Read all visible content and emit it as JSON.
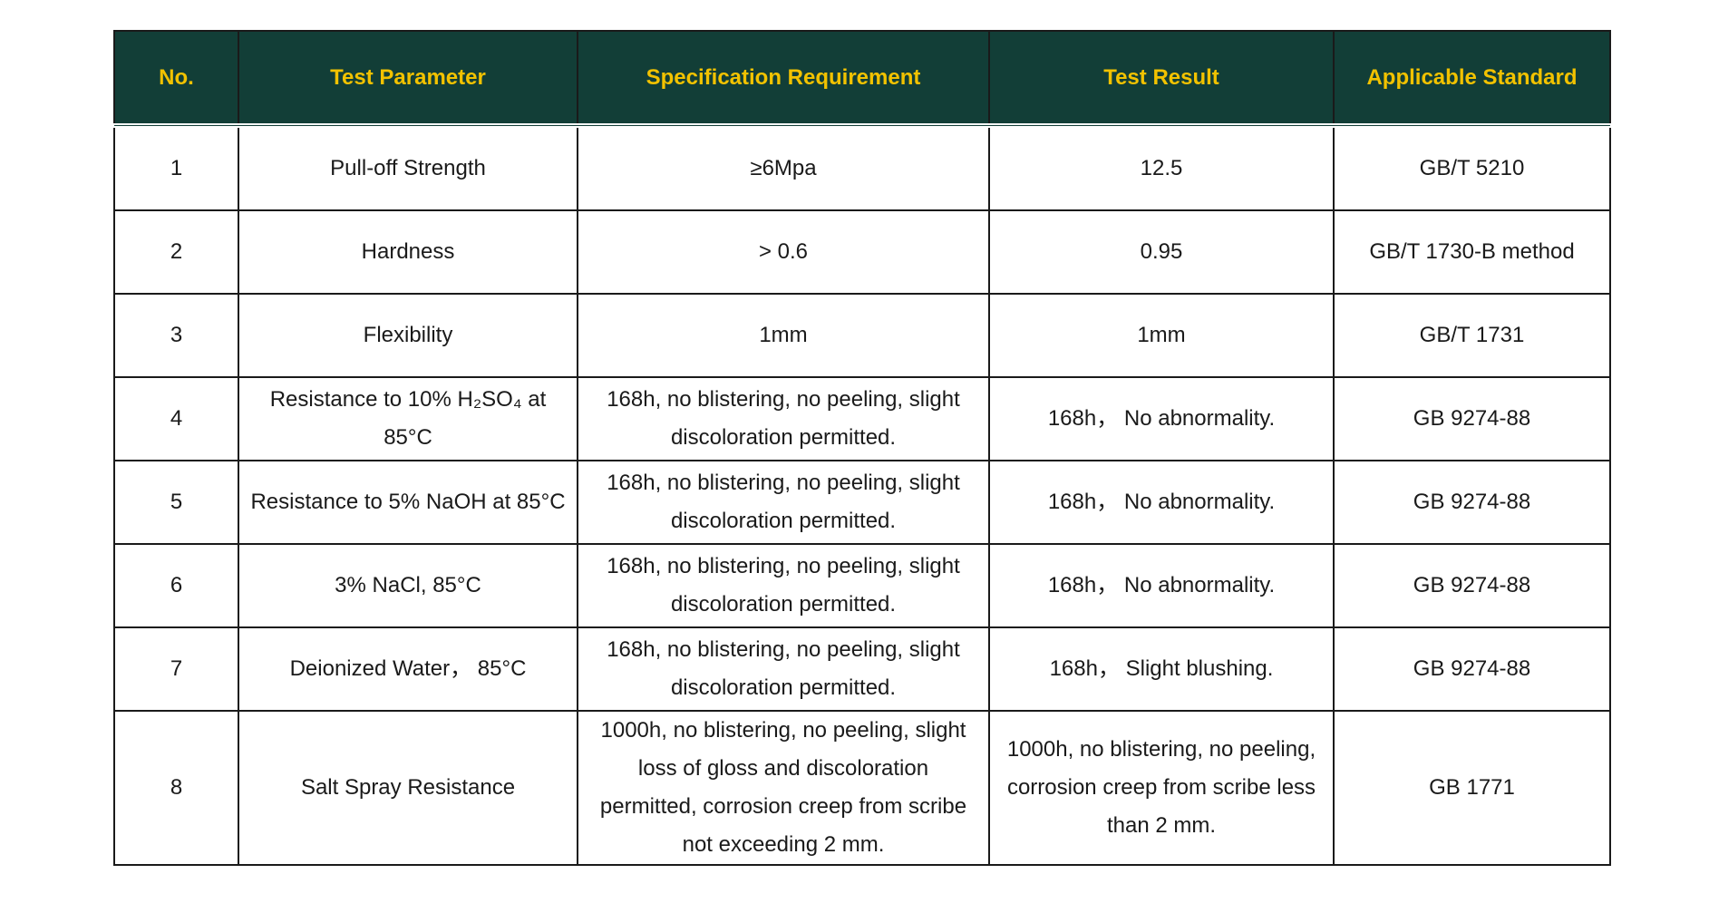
{
  "table": {
    "headers": {
      "no": "No.",
      "parameter": "Test Parameter",
      "spec": "Specification Requirement",
      "result": "Test Result",
      "standard": "Applicable Standard"
    },
    "rows": [
      {
        "no": "1",
        "parameter": "Pull-off Strength",
        "spec": "≥6Mpa",
        "result": "12.5",
        "standard": "GB/T 5210"
      },
      {
        "no": "2",
        "parameter": "Hardness",
        "spec": "> 0.6",
        "result": "0.95",
        "standard": "GB/T 1730-B method"
      },
      {
        "no": "3",
        "parameter": "Flexibility",
        "spec": "1mm",
        "result": "1mm",
        "standard": "GB/T 1731"
      },
      {
        "no": "4",
        "parameter": "Resistance to 10% H₂SO₄ at 85°C",
        "spec": "168h, no blistering, no peeling, slight discoloration permitted.",
        "result": "168h， No abnormality.",
        "standard": "GB 9274-88"
      },
      {
        "no": "5",
        "parameter": "Resistance to 5% NaOH at 85°C",
        "spec": "168h, no blistering, no peeling, slight discoloration permitted.",
        "result": "168h， No abnormality.",
        "standard": "GB 9274-88"
      },
      {
        "no": "6",
        "parameter": "3% NaCl, 85°C",
        "spec": "168h, no blistering, no peeling, slight discoloration permitted.",
        "result": "168h， No abnormality.",
        "standard": "GB 9274-88"
      },
      {
        "no": "7",
        "parameter": "Deionized Water， 85°C",
        "spec": "168h, no blistering, no peeling, slight discoloration permitted.",
        "result": "168h， Slight blushing.",
        "standard": "GB 9274-88"
      },
      {
        "no": "8",
        "parameter": "Salt Spray Resistance",
        "spec": "1000h, no blistering, no peeling, slight loss of gloss and discoloration permitted, corrosion creep from scribe not exceeding 2 mm.",
        "result": "1000h, no blistering, no peeling, corrosion creep from scribe less than 2 mm.",
        "standard": "GB 1771"
      }
    ]
  },
  "colors": {
    "header_bg": "#123e37",
    "header_text": "#f2c200",
    "body_text": "#1a1a1a",
    "border": "#1a1a1a"
  }
}
